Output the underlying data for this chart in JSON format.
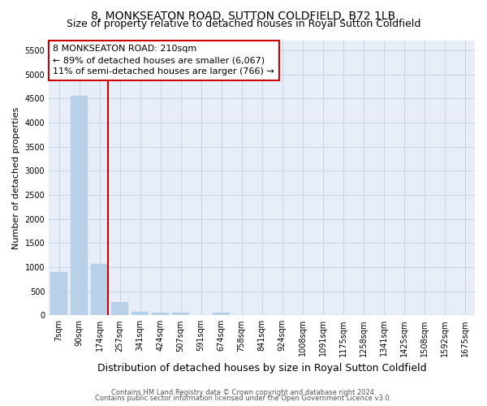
{
  "title": "8, MONKSEATON ROAD, SUTTON COLDFIELD, B72 1LB",
  "subtitle": "Size of property relative to detached houses in Royal Sutton Coldfield",
  "xlabel": "Distribution of detached houses by size in Royal Sutton Coldfield",
  "ylabel": "Number of detached properties",
  "bar_color": "#b8d0e8",
  "bar_edgecolor": "#b8d0e8",
  "categories": [
    "7sqm",
    "90sqm",
    "174sqm",
    "257sqm",
    "341sqm",
    "424sqm",
    "507sqm",
    "591sqm",
    "674sqm",
    "758sqm",
    "841sqm",
    "924sqm",
    "1008sqm",
    "1091sqm",
    "1175sqm",
    "1258sqm",
    "1341sqm",
    "1425sqm",
    "1508sqm",
    "1592sqm",
    "1675sqm"
  ],
  "values": [
    900,
    4550,
    1060,
    280,
    80,
    60,
    50,
    0,
    60,
    0,
    0,
    0,
    0,
    0,
    0,
    0,
    0,
    0,
    0,
    0,
    0
  ],
  "vline_color": "#cc0000",
  "vline_xindex": 2,
  "annotation_line1": "8 MONKSEATON ROAD: 210sqm",
  "annotation_line2": "← 89% of detached houses are smaller (6,067)",
  "annotation_line3": "11% of semi-detached houses are larger (766) →",
  "ylim": [
    0,
    5700
  ],
  "yticks": [
    0,
    500,
    1000,
    1500,
    2000,
    2500,
    3000,
    3500,
    4000,
    4500,
    5000,
    5500
  ],
  "grid_color": "#c8d4e8",
  "background_color": "#e8eef8",
  "footer1": "Contains HM Land Registry data © Crown copyright and database right 2024.",
  "footer2": "Contains public sector information licensed under the Open Government Licence v3.0.",
  "title_fontsize": 10,
  "subtitle_fontsize": 9,
  "ylabel_fontsize": 8,
  "xlabel_fontsize": 9,
  "annotation_box_edgecolor": "#cc0000",
  "annotation_fontsize": 8,
  "tick_fontsize": 7,
  "footer_fontsize": 6
}
